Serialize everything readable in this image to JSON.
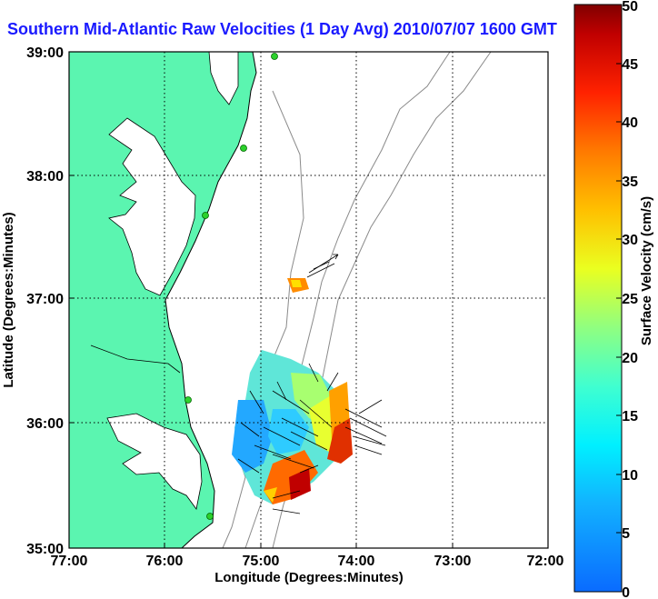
{
  "title": "Southern Mid-Atlantic Raw Velocities (1 Day Avg) 2010/07/07 1600 GMT",
  "chart_data": {
    "type": "map",
    "xlabel": "Longitude (Degrees:Minutes)",
    "ylabel": "Latitude (Degrees:Minutes)",
    "x_ticks": [
      "77:00",
      "76:00",
      "75:00",
      "74:00",
      "73:00",
      "72:00"
    ],
    "y_ticks": [
      "39:00",
      "38:00",
      "37:00",
      "36:00",
      "35:00"
    ],
    "xlim": [
      -77,
      -72
    ],
    "ylim": [
      35,
      39
    ],
    "grid": true,
    "colorbar": {
      "label": "Surface Velocity (cm/s)",
      "range": [
        0,
        50
      ],
      "ticks": [
        "0",
        "5",
        "10",
        "15",
        "20",
        "25",
        "30",
        "35",
        "40",
        "45",
        "50"
      ],
      "colormap": "jet"
    },
    "stations": [
      {
        "lon": -75.1,
        "lat": 38.98
      },
      {
        "lon": -75.1,
        "lat": 38.22
      },
      {
        "lon": -75.5,
        "lat": 37.68
      },
      {
        "lon": -75.7,
        "lat": 36.18
      },
      {
        "lon": -75.5,
        "lat": 35.25
      }
    ]
  }
}
